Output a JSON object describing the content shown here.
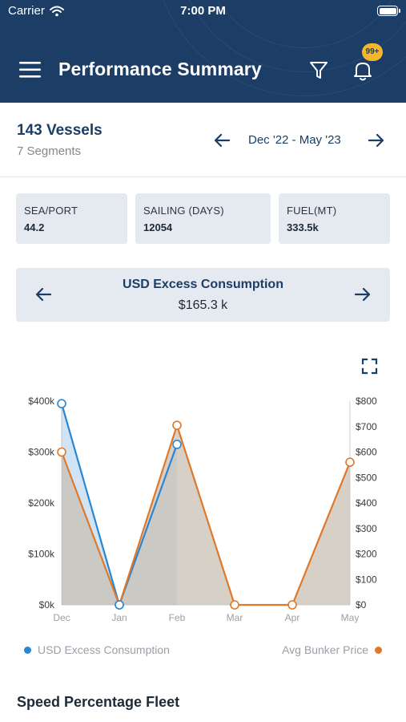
{
  "status_bar": {
    "carrier": "Carrier",
    "time": "7:00 PM"
  },
  "header": {
    "title": "Performance Summary",
    "notification_badge": "99+",
    "background_color": "#1b3d66",
    "badge_color": "#f4b62a"
  },
  "summary": {
    "vessels": "143 Vessels",
    "segments": "7 Segments",
    "date_range": "Dec '22 - May '23"
  },
  "stats": [
    {
      "label": "SEA/PORT",
      "value": "44.2"
    },
    {
      "label": "SAILING (DAYS)",
      "value": "12054"
    },
    {
      "label": "FUEL(MT)",
      "value": "333.5k"
    }
  ],
  "metric": {
    "title": "USD Excess Consumption",
    "value": "$165.3 k"
  },
  "chart_data": {
    "type": "line",
    "categories": [
      "Dec",
      "Jan",
      "Feb",
      "Mar",
      "Apr",
      "May"
    ],
    "series": [
      {
        "name": "USD Excess Consumption",
        "axis": "left",
        "color": "#2a86d1",
        "values": [
          395000,
          0,
          315000,
          null,
          null,
          null
        ]
      },
      {
        "name": "Avg Bunker Price",
        "axis": "right",
        "color": "#e0782a",
        "values": [
          600,
          0,
          705,
          0,
          0,
          560
        ]
      }
    ],
    "y_left": {
      "min": 0,
      "max": 400000,
      "ticks": [
        "$0k",
        "$100k",
        "$200k",
        "$300k",
        "$400k"
      ]
    },
    "y_right": {
      "min": 0,
      "max": 800,
      "ticks": [
        "$0",
        "$100",
        "$200",
        "$300",
        "$400",
        "$500",
        "$600",
        "$700",
        "$800"
      ]
    },
    "grid": false,
    "legend_position": "bottom"
  },
  "legend": {
    "left": "USD Excess Consumption",
    "right": "Avg Bunker Price"
  },
  "section": {
    "title": "Speed Percentage Fleet"
  }
}
